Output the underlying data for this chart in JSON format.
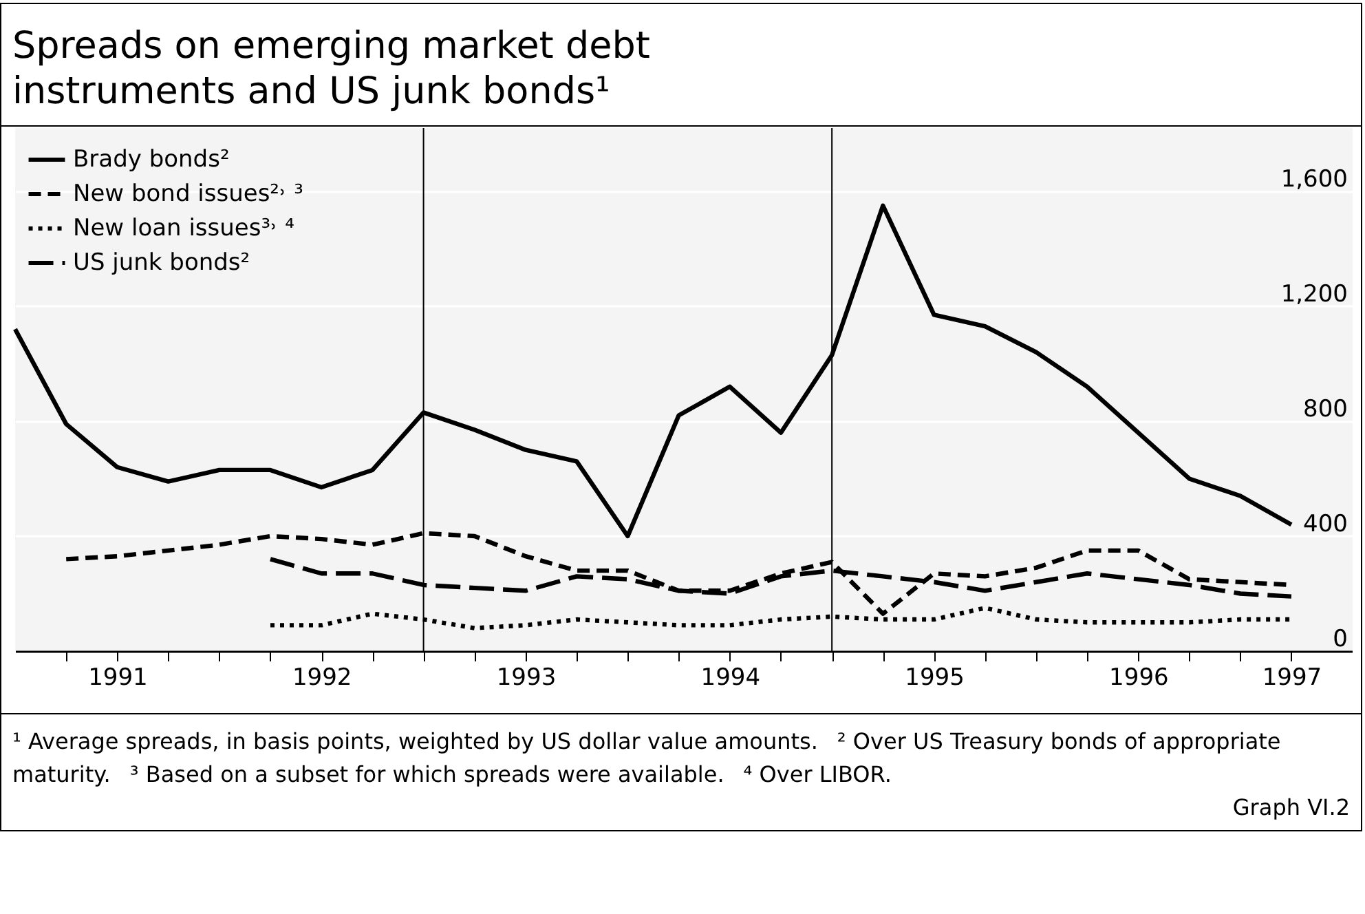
{
  "chart_data": {
    "type": "line",
    "title": "Spreads on emerging market debt instruments and US junk bonds¹",
    "x": [
      1991,
      1991.25,
      1991.5,
      1991.75,
      1992,
      1992.25,
      1992.5,
      1992.75,
      1993,
      1993.25,
      1993.5,
      1993.75,
      1994,
      1994.25,
      1994.5,
      1994.75,
      1995,
      1995.25,
      1995.5,
      1995.75,
      1996,
      1996.25,
      1996.5,
      1996.75,
      1997,
      1997.25
    ],
    "series": [
      {
        "name": "Brady bonds²",
        "color": "#000000",
        "line_style": "solid",
        "values": [
          1120,
          790,
          640,
          590,
          630,
          630,
          570,
          630,
          830,
          770,
          700,
          660,
          400,
          820,
          920,
          760,
          1030,
          1550,
          1170,
          1130,
          1040,
          920,
          760,
          600,
          540,
          440
        ]
      },
      {
        "name": "New bond issues²˒ ³",
        "color": "#000000",
        "line_style": "dashed",
        "values": [
          null,
          320,
          330,
          350,
          370,
          400,
          390,
          370,
          410,
          400,
          330,
          280,
          280,
          210,
          210,
          270,
          310,
          130,
          270,
          260,
          290,
          350,
          350,
          250,
          240,
          230
        ]
      },
      {
        "name": "New loan issues³˒ ⁴",
        "color": "#000000",
        "line_style": "dotted",
        "values": [
          null,
          null,
          null,
          null,
          null,
          90,
          90,
          130,
          110,
          80,
          90,
          110,
          100,
          90,
          90,
          110,
          120,
          110,
          110,
          150,
          110,
          100,
          100,
          100,
          110,
          110
        ]
      },
      {
        "name": "US junk bonds²",
        "color": "#000000",
        "line_style": "dashed",
        "values": [
          null,
          null,
          null,
          null,
          null,
          320,
          270,
          270,
          230,
          220,
          210,
          260,
          250,
          210,
          200,
          260,
          280,
          260,
          240,
          210,
          240,
          270,
          250,
          230,
          200,
          190
        ]
      }
    ],
    "xlim": [
      1991,
      1997.55
    ],
    "xticks": [
      {
        "value": 1991.25,
        "label": null
      },
      {
        "value": 1991.5,
        "label": "1991"
      },
      {
        "value": 1991.75,
        "label": null
      },
      {
        "value": 1992,
        "label": null
      },
      {
        "value": 1992.25,
        "label": null
      },
      {
        "value": 1992.5,
        "label": "1992"
      },
      {
        "value": 1992.75,
        "label": null
      },
      {
        "value": 1993,
        "label": null
      },
      {
        "value": 1993.25,
        "label": null
      },
      {
        "value": 1993.5,
        "label": "1993"
      },
      {
        "value": 1993.75,
        "label": null
      },
      {
        "value": 1994,
        "label": null
      },
      {
        "value": 1994.25,
        "label": null
      },
      {
        "value": 1994.5,
        "label": "1994"
      },
      {
        "value": 1994.75,
        "label": null
      },
      {
        "value": 1995,
        "label": null
      },
      {
        "value": 1995.25,
        "label": null
      },
      {
        "value": 1995.5,
        "label": "1995"
      },
      {
        "value": 1995.75,
        "label": null
      },
      {
        "value": 1996,
        "label": null
      },
      {
        "value": 1996.25,
        "label": null
      },
      {
        "value": 1996.5,
        "label": "1996"
      },
      {
        "value": 1996.75,
        "label": null
      },
      {
        "value": 1997,
        "label": null
      },
      {
        "value": 1997.25,
        "label": "1997"
      }
    ],
    "ylim": [
      0,
      1820
    ],
    "yticks": [
      {
        "value": 0,
        "label": "0"
      },
      {
        "value": 400,
        "label": "400"
      },
      {
        "value": 800,
        "label": "800"
      },
      {
        "value": 1200,
        "label": "1,200"
      },
      {
        "value": 1600,
        "label": "1,600"
      }
    ],
    "grid": "y",
    "legend": "top left",
    "ref_lines": [
      {
        "axis": "x",
        "value": 1993,
        "color": "#000000"
      },
      {
        "axis": "x",
        "value": 1995,
        "color": "#000000"
      }
    ],
    "annotations": [
      "¹ Average spreads, in basis points, weighted by US dollar value amounts.",
      "² Over US Treasury bonds of appropriate maturity.",
      "³ Based on a subset for which spreads were available.",
      "⁴ Over LIBOR.",
      "Graph VI.2"
    ]
  }
}
